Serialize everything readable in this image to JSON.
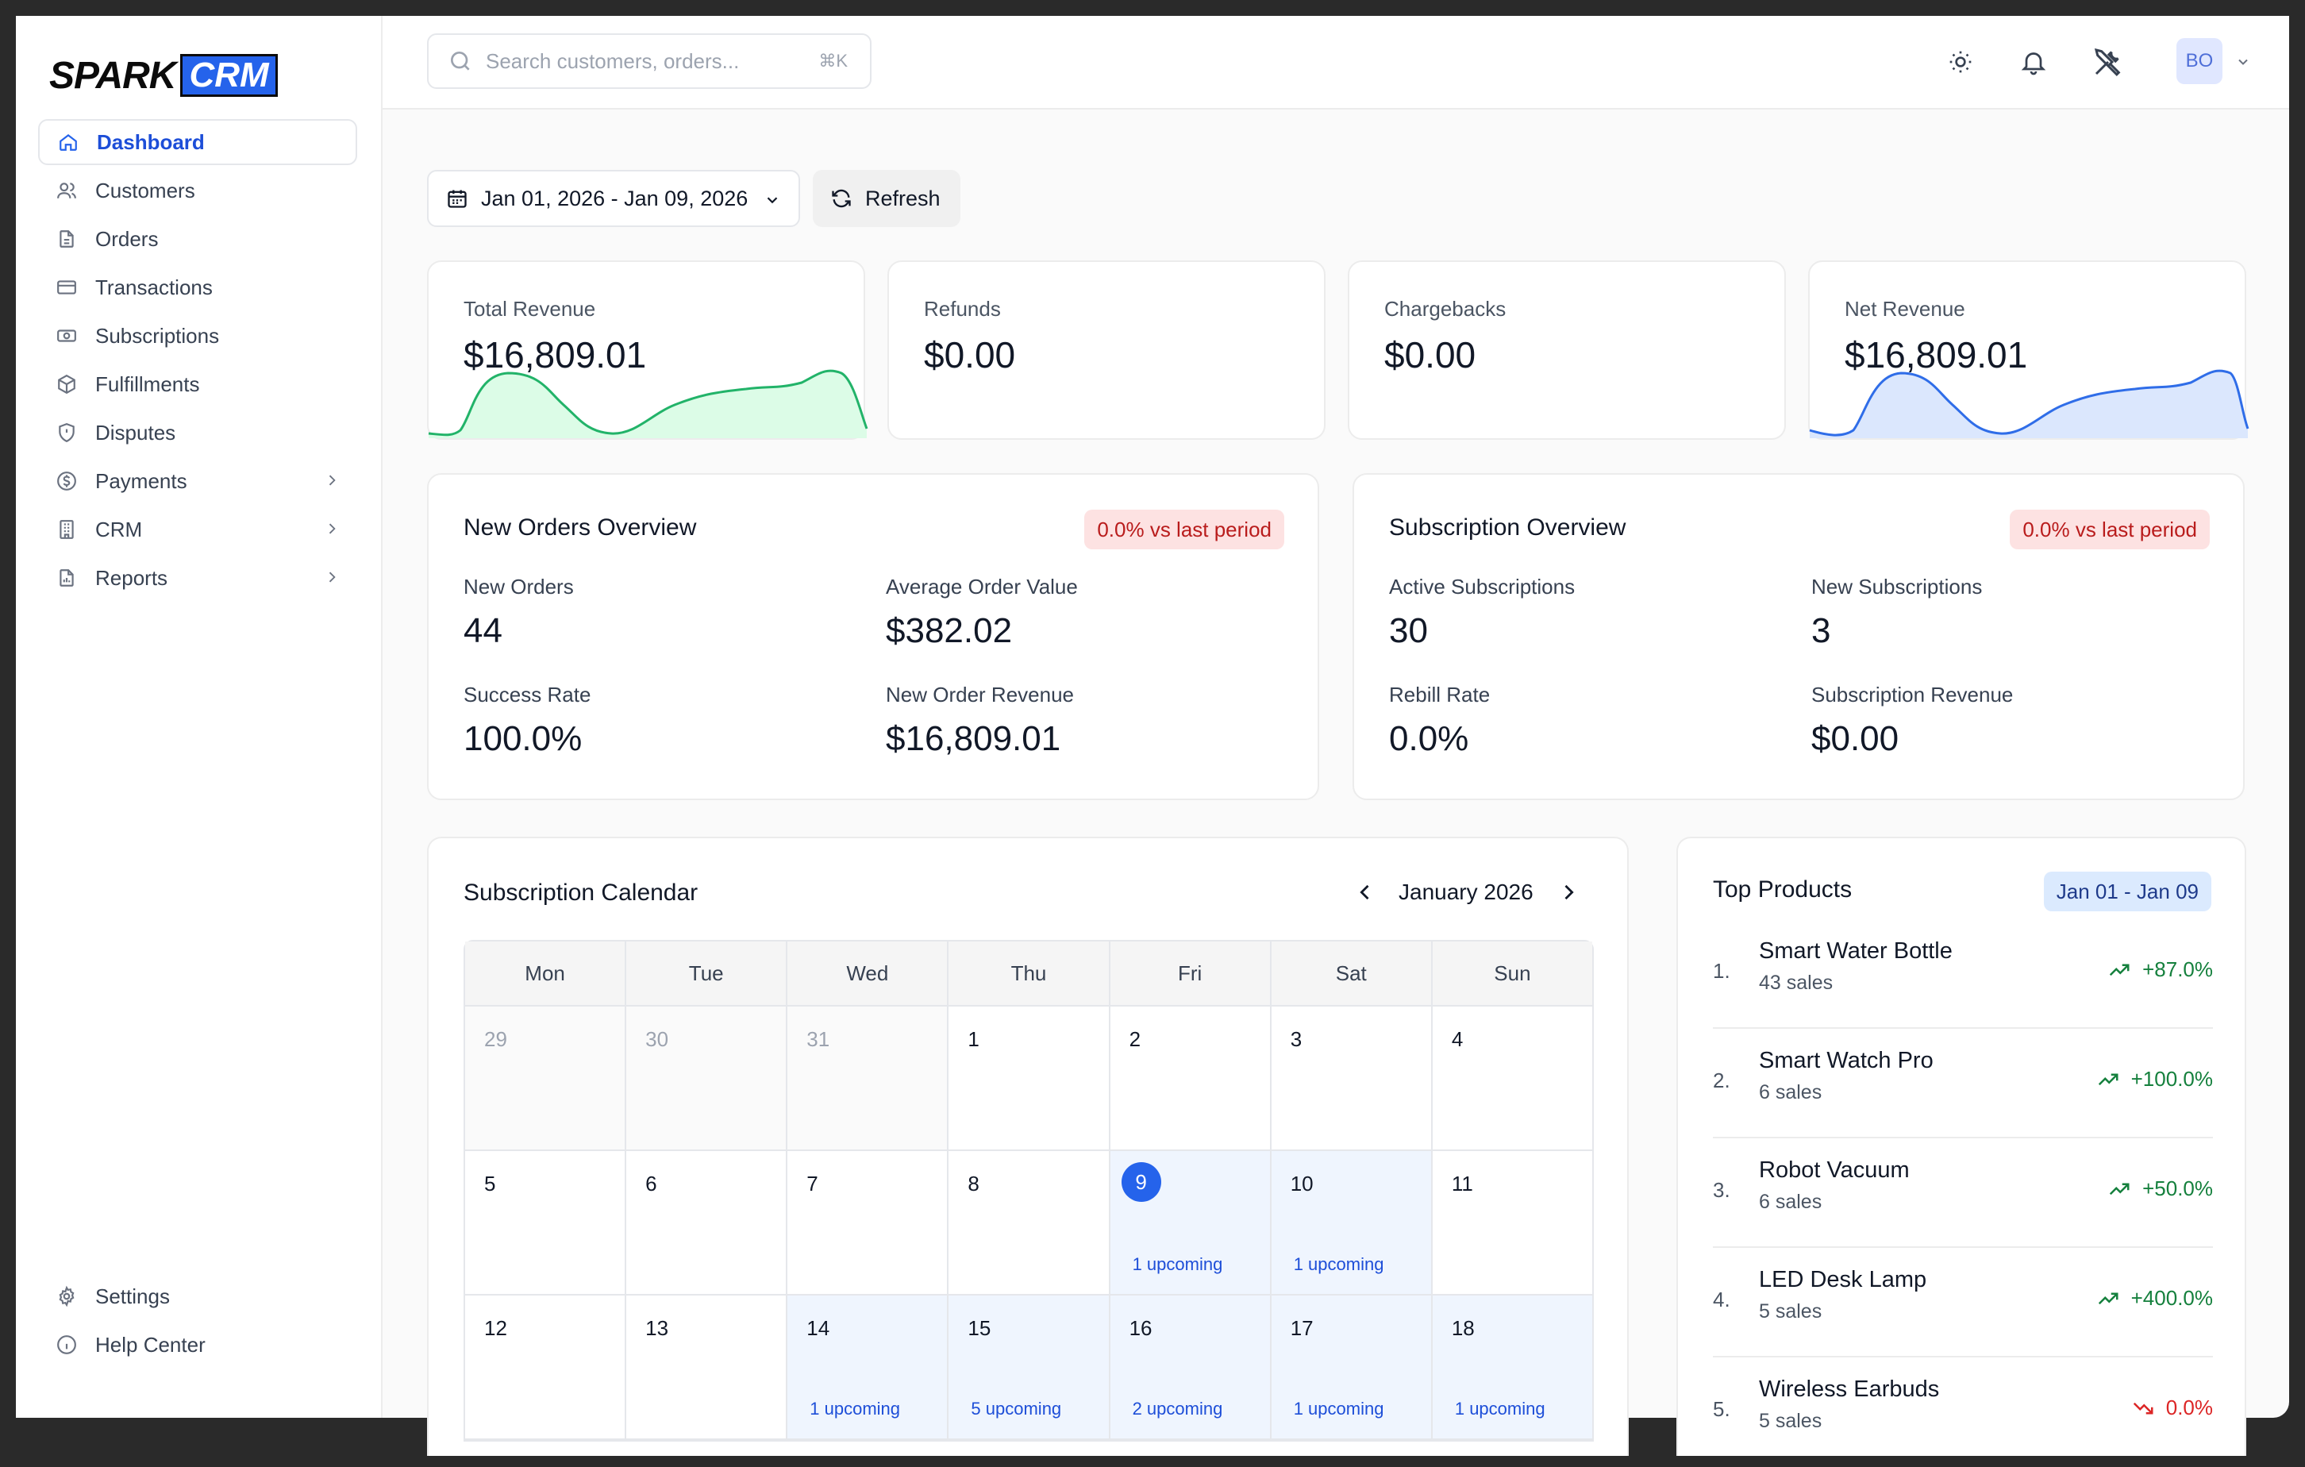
{
  "brand": {
    "logo_left": "SPARK",
    "logo_right": "CRM"
  },
  "sidebar": {
    "items": [
      {
        "label": "Dashboard",
        "icon": "home-icon",
        "active": true
      },
      {
        "label": "Customers",
        "icon": "users-icon"
      },
      {
        "label": "Orders",
        "icon": "file-icon"
      },
      {
        "label": "Transactions",
        "icon": "credit-card-icon"
      },
      {
        "label": "Subscriptions",
        "icon": "banknote-icon"
      },
      {
        "label": "Fulfillments",
        "icon": "package-icon"
      },
      {
        "label": "Disputes",
        "icon": "shield-icon"
      },
      {
        "label": "Payments",
        "icon": "dollar-circle-icon",
        "has_children": true
      },
      {
        "label": "CRM",
        "icon": "building-icon",
        "has_children": true
      },
      {
        "label": "Reports",
        "icon": "report-icon",
        "has_children": true
      }
    ],
    "bottom": [
      {
        "label": "Settings",
        "icon": "gear-icon"
      },
      {
        "label": "Help Center",
        "icon": "info-icon"
      }
    ]
  },
  "topbar": {
    "search_placeholder": "Search customers, orders...",
    "search_shortcut": "⌘K",
    "avatar_initials": "BO"
  },
  "toolbar": {
    "date_range": "Jan 01, 2026 - Jan 09, 2026",
    "refresh_label": "Refresh"
  },
  "stats": [
    {
      "label": "Total Revenue",
      "value": "$16,809.01",
      "sparkline": "green"
    },
    {
      "label": "Refunds",
      "value": "$0.00"
    },
    {
      "label": "Chargebacks",
      "value": "$0.00"
    },
    {
      "label": "Net Revenue",
      "value": "$16,809.01",
      "sparkline": "blue"
    }
  ],
  "orders_overview": {
    "title": "New Orders Overview",
    "badge": "0.0% vs last period",
    "metrics": [
      {
        "label": "New Orders",
        "value": "44"
      },
      {
        "label": "Average Order Value",
        "value": "$382.02"
      },
      {
        "label": "Success Rate",
        "value": "100.0%"
      },
      {
        "label": "New Order Revenue",
        "value": "$16,809.01"
      }
    ]
  },
  "subscription_overview": {
    "title": "Subscription Overview",
    "badge": "0.0% vs last period",
    "metrics": [
      {
        "label": "Active Subscriptions",
        "value": "30"
      },
      {
        "label": "New Subscriptions",
        "value": "3"
      },
      {
        "label": "Rebill Rate",
        "value": "0.0%"
      },
      {
        "label": "Subscription Revenue",
        "value": "$0.00"
      }
    ]
  },
  "calendar": {
    "title": "Subscription Calendar",
    "month": "January 2026",
    "weekdays": [
      "Mon",
      "Tue",
      "Wed",
      "Thu",
      "Fri",
      "Sat",
      "Sun"
    ],
    "weeks": [
      [
        {
          "day": "29",
          "muted": true
        },
        {
          "day": "30",
          "muted": true
        },
        {
          "day": "31",
          "muted": true
        },
        {
          "day": "1"
        },
        {
          "day": "2"
        },
        {
          "day": "3"
        },
        {
          "day": "4"
        }
      ],
      [
        {
          "day": "5"
        },
        {
          "day": "6"
        },
        {
          "day": "7"
        },
        {
          "day": "8"
        },
        {
          "day": "9",
          "today": true,
          "upcoming": "1 upcoming"
        },
        {
          "day": "10",
          "upcoming": "1 upcoming"
        },
        {
          "day": "11"
        }
      ],
      [
        {
          "day": "12"
        },
        {
          "day": "13"
        },
        {
          "day": "14",
          "upcoming": "1 upcoming"
        },
        {
          "day": "15",
          "upcoming": "5 upcoming"
        },
        {
          "day": "16",
          "upcoming": "2 upcoming"
        },
        {
          "day": "17",
          "upcoming": "1 upcoming"
        },
        {
          "day": "18",
          "upcoming": "1 upcoming"
        }
      ]
    ]
  },
  "top_products": {
    "title": "Top Products",
    "badge": "Jan 01 - Jan 09",
    "items": [
      {
        "rank": "1.",
        "name": "Smart Water Bottle",
        "sales": "43 sales",
        "change": "+87.0%",
        "direction": "up"
      },
      {
        "rank": "2.",
        "name": "Smart Watch Pro",
        "sales": "6 sales",
        "change": "+100.0%",
        "direction": "up"
      },
      {
        "rank": "3.",
        "name": "Robot Vacuum",
        "sales": "6 sales",
        "change": "+50.0%",
        "direction": "up"
      },
      {
        "rank": "4.",
        "name": "LED Desk Lamp",
        "sales": "5 sales",
        "change": "+400.0%",
        "direction": "up"
      },
      {
        "rank": "5.",
        "name": "Wireless Earbuds",
        "sales": "5 sales",
        "change": "0.0%",
        "direction": "down"
      }
    ]
  },
  "colors": {
    "accent": "#2563eb",
    "success": "#15803d",
    "danger": "#dc2626",
    "badge_red_bg": "#fde2e2",
    "badge_blue_bg": "#dbeafe"
  }
}
